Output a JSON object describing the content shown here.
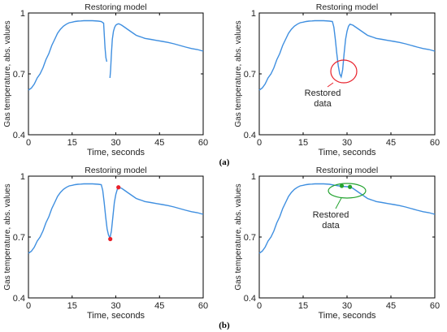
{
  "panel_labels": [
    "(a)",
    "(b)"
  ],
  "colors": {
    "line": "#3f8fe0",
    "marker_red": "#e8202a",
    "marker_green": "#23a32f",
    "circle_red": "#e8202a",
    "ellipse_green": "#23a32f",
    "axis": "#000000"
  },
  "chart_data": [
    {
      "type": "line",
      "title": "Restoring model",
      "xlabel": "Time, seconds",
      "ylabel": "Gas temperature, abs. values",
      "xlim": [
        0,
        60
      ],
      "ylim": [
        0.4,
        1
      ],
      "xticks": [
        "0",
        "15",
        "30",
        "45",
        "60"
      ],
      "yticks": [
        "0.4",
        "0.7",
        "1"
      ],
      "series": [
        {
          "x": [
            0,
            1,
            2,
            3,
            4,
            5,
            6,
            7,
            8,
            9,
            10,
            11,
            12,
            13,
            14,
            15,
            16,
            17,
            18,
            19,
            20,
            22,
            24,
            25,
            25.8,
            26,
            26.3,
            26.6,
            26.9
          ],
          "y": [
            0.62,
            0.63,
            0.65,
            0.68,
            0.7,
            0.73,
            0.77,
            0.8,
            0.84,
            0.87,
            0.9,
            0.92,
            0.935,
            0.945,
            0.952,
            0.955,
            0.958,
            0.96,
            0.961,
            0.962,
            0.962,
            0.962,
            0.96,
            0.958,
            0.95,
            0.9,
            0.83,
            0.78,
            0.76
          ]
        },
        {
          "x": [
            28.0,
            28.2,
            28.5,
            28.8,
            29.2,
            29.6,
            30.0,
            30.5,
            31.0,
            32,
            33,
            34,
            35,
            36,
            37,
            38,
            39,
            40,
            42,
            44,
            46,
            48,
            50,
            52,
            54,
            56,
            58,
            60
          ],
          "y": [
            0.68,
            0.72,
            0.8,
            0.87,
            0.91,
            0.93,
            0.94,
            0.945,
            0.947,
            0.94,
            0.93,
            0.92,
            0.91,
            0.9,
            0.89,
            0.885,
            0.88,
            0.875,
            0.87,
            0.865,
            0.86,
            0.855,
            0.848,
            0.84,
            0.832,
            0.825,
            0.82,
            0.812
          ]
        }
      ]
    },
    {
      "type": "line",
      "title": "Restoring model",
      "xlabel": "Time, seconds",
      "ylabel": "Gas temperature, abs. values",
      "xlim": [
        0,
        60
      ],
      "ylim": [
        0.4,
        1
      ],
      "xticks": [
        "0",
        "15",
        "30",
        "45",
        "60"
      ],
      "yticks": [
        "0.4",
        "0.7",
        "1"
      ],
      "annotation": "Restored\ndata",
      "series": [
        {
          "x": [
            0,
            1,
            2,
            3,
            4,
            5,
            6,
            7,
            8,
            9,
            10,
            11,
            12,
            13,
            14,
            15,
            16,
            17,
            18,
            19,
            20,
            22,
            24,
            25,
            25.5,
            26,
            26.5,
            27,
            27.5,
            28,
            28.5,
            29,
            29.5,
            30,
            30.5,
            31,
            32,
            33,
            34,
            35,
            36,
            37,
            38,
            39,
            40,
            42,
            44,
            46,
            48,
            50,
            52,
            54,
            56,
            58,
            60
          ],
          "y": [
            0.62,
            0.63,
            0.65,
            0.68,
            0.7,
            0.73,
            0.77,
            0.8,
            0.84,
            0.87,
            0.9,
            0.92,
            0.935,
            0.945,
            0.952,
            0.955,
            0.958,
            0.96,
            0.961,
            0.962,
            0.962,
            0.962,
            0.96,
            0.958,
            0.93,
            0.87,
            0.8,
            0.74,
            0.7,
            0.685,
            0.72,
            0.8,
            0.87,
            0.91,
            0.935,
            0.945,
            0.94,
            0.93,
            0.92,
            0.91,
            0.9,
            0.89,
            0.885,
            0.88,
            0.875,
            0.87,
            0.865,
            0.86,
            0.855,
            0.848,
            0.84,
            0.832,
            0.825,
            0.82,
            0.812
          ]
        }
      ]
    },
    {
      "type": "line",
      "title": "Restoring model",
      "xlabel": "Time, seconds",
      "ylabel": "Gas temperature, abs. values",
      "xlim": [
        0,
        60
      ],
      "ylim": [
        0.4,
        1
      ],
      "xticks": [
        "0",
        "15",
        "30",
        "45",
        "60"
      ],
      "yticks": [
        "0.4",
        "0.7",
        "1"
      ],
      "series": [
        {
          "x": [
            0,
            1,
            2,
            3,
            4,
            5,
            6,
            7,
            8,
            9,
            10,
            11,
            12,
            13,
            14,
            15,
            16,
            17,
            18,
            19,
            20,
            22,
            24,
            25,
            25.5,
            26,
            26.5,
            27,
            27.5,
            28,
            28.5,
            29,
            29.5,
            30,
            30.5,
            31,
            32,
            33,
            34,
            35,
            36,
            37,
            38,
            39,
            40,
            42,
            44,
            46,
            48,
            50,
            52,
            54,
            56,
            58,
            60
          ],
          "y": [
            0.62,
            0.63,
            0.65,
            0.68,
            0.7,
            0.73,
            0.77,
            0.8,
            0.84,
            0.87,
            0.9,
            0.92,
            0.935,
            0.945,
            0.952,
            0.955,
            0.958,
            0.96,
            0.961,
            0.962,
            0.962,
            0.962,
            0.96,
            0.958,
            0.93,
            0.87,
            0.8,
            0.74,
            0.71,
            0.695,
            0.73,
            0.8,
            0.87,
            0.91,
            0.935,
            0.945,
            0.94,
            0.93,
            0.92,
            0.91,
            0.9,
            0.89,
            0.885,
            0.88,
            0.875,
            0.87,
            0.865,
            0.86,
            0.855,
            0.848,
            0.84,
            0.832,
            0.825,
            0.82,
            0.812
          ]
        }
      ],
      "markers": [
        {
          "x": 28.1,
          "y": 0.69,
          "color": "#e8202a"
        },
        {
          "x": 30.9,
          "y": 0.945,
          "color": "#e8202a"
        }
      ]
    },
    {
      "type": "line",
      "title": "Restoring model",
      "xlabel": "Time, seconds",
      "ylabel": "Gas temperature, abs. values",
      "xlim": [
        0,
        60
      ],
      "ylim": [
        0.4,
        1
      ],
      "xticks": [
        "0",
        "15",
        "30",
        "45",
        "60"
      ],
      "yticks": [
        "0.4",
        "0.7",
        "1"
      ],
      "annotation": "Restored\ndata",
      "series": [
        {
          "x": [
            0,
            1,
            2,
            3,
            4,
            5,
            6,
            7,
            8,
            9,
            10,
            11,
            12,
            13,
            14,
            15,
            16,
            17,
            18,
            19,
            20,
            22,
            24,
            26,
            28,
            30,
            31,
            32,
            33,
            34,
            35,
            36,
            37,
            38,
            39,
            40,
            42,
            44,
            46,
            48,
            50,
            52,
            54,
            56,
            58,
            60
          ],
          "y": [
            0.62,
            0.63,
            0.65,
            0.68,
            0.7,
            0.73,
            0.77,
            0.8,
            0.84,
            0.87,
            0.9,
            0.92,
            0.935,
            0.945,
            0.952,
            0.955,
            0.958,
            0.96,
            0.961,
            0.962,
            0.962,
            0.962,
            0.96,
            0.955,
            0.95,
            0.948,
            0.947,
            0.94,
            0.93,
            0.92,
            0.91,
            0.9,
            0.89,
            0.885,
            0.88,
            0.875,
            0.87,
            0.865,
            0.86,
            0.855,
            0.848,
            0.84,
            0.832,
            0.825,
            0.82,
            0.812
          ]
        }
      ],
      "markers": [
        {
          "x": 28.2,
          "y": 0.952,
          "color": "#23a32f"
        },
        {
          "x": 31.0,
          "y": 0.947,
          "color": "#23a32f"
        }
      ]
    }
  ]
}
